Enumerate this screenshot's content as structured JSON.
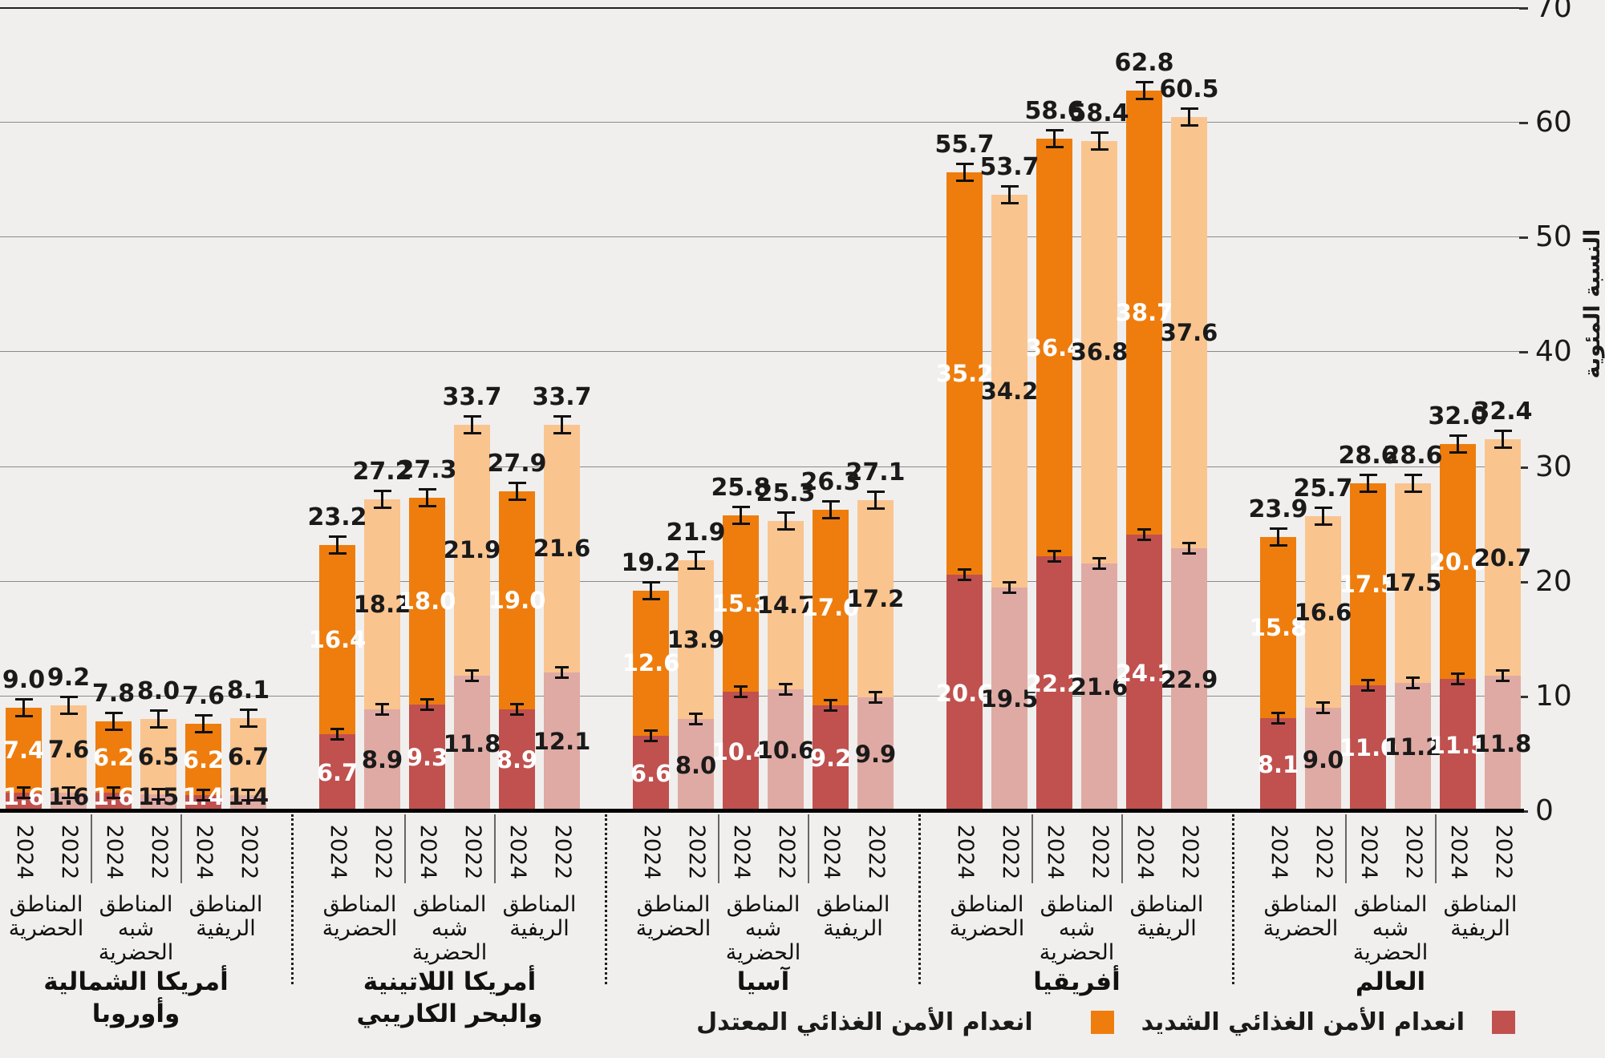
{
  "legend": {
    "severe_label": "انعدام الأمن الغذائي الشديد",
    "moderate_label": "انعدام الأمن الغذائي المعتدل"
  },
  "colors": {
    "severe_2024": "#c0514e",
    "severe_2022": "#dfaaa3",
    "moderate_2024": "#ee7d0e",
    "moderate_2022": "#fac48f",
    "background": "#f0efed",
    "gridline": "#8b8b8b",
    "baseline": "#000000",
    "text": "#1a1a1a"
  },
  "chart_data": {
    "type": "bar",
    "stacked": true,
    "title": "",
    "ylabel": "النسبة المئوية",
    "ylim": [
      0,
      70
    ],
    "yticks": [
      0,
      10,
      20,
      30,
      40,
      50,
      60,
      70
    ],
    "grid": true,
    "legend_position": "bottom-right",
    "series_names": [
      "انعدام الأمن الغذائي الشديد",
      "انعدام الأمن الغذائي المعتدل"
    ],
    "years": [
      "2024",
      "2022"
    ],
    "groups": [
      {
        "label": "أمريكا الشمالية\nوأوروبا",
        "subgroups": [
          {
            "label": "المناطق\nالحضرية",
            "bars": [
              {
                "year": "2024",
                "severe": 1.6,
                "moderate": 7.4,
                "total": 9.0
              },
              {
                "year": "2022",
                "severe": 1.6,
                "moderate": 7.6,
                "total": 9.2
              }
            ]
          },
          {
            "label": "المناطق\nشبه\nالحضرية",
            "bars": [
              {
                "year": "2024",
                "severe": 1.6,
                "moderate": 6.2,
                "total": 7.8
              },
              {
                "year": "2022",
                "severe": 1.5,
                "moderate": 6.5,
                "total": 8.0
              }
            ]
          },
          {
            "label": "المناطق\nالريفية",
            "bars": [
              {
                "year": "2024",
                "severe": 1.4,
                "moderate": 6.2,
                "total": 7.6
              },
              {
                "year": "2022",
                "severe": 1.4,
                "moderate": 6.7,
                "total": 8.1
              }
            ]
          }
        ]
      },
      {
        "label": "أمريكا اللاتينية\nوالبحر الكاريبي",
        "subgroups": [
          {
            "label": "المناطق\nالحضرية",
            "bars": [
              {
                "year": "2024",
                "severe": 6.7,
                "moderate": 16.4,
                "total": 23.2
              },
              {
                "year": "2022",
                "severe": 8.9,
                "moderate": 18.2,
                "total": 27.2
              }
            ]
          },
          {
            "label": "المناطق\nشبه\nالحضرية",
            "bars": [
              {
                "year": "2024",
                "severe": 9.3,
                "moderate": 18.0,
                "total": 27.3
              },
              {
                "year": "2022",
                "severe": 11.8,
                "moderate": 21.9,
                "total": 33.7
              }
            ]
          },
          {
            "label": "المناطق\nالريفية",
            "bars": [
              {
                "year": "2024",
                "severe": 8.9,
                "moderate": 19.0,
                "total": 27.9
              },
              {
                "year": "2022",
                "severe": 12.1,
                "moderate": 21.6,
                "total": 33.7
              }
            ]
          }
        ]
      },
      {
        "label": "آسيا",
        "subgroups": [
          {
            "label": "المناطق\nالحضرية",
            "bars": [
              {
                "year": "2024",
                "severe": 6.6,
                "moderate": 12.6,
                "total": 19.2
              },
              {
                "year": "2022",
                "severe": 8.0,
                "moderate": 13.9,
                "total": 21.9
              }
            ]
          },
          {
            "label": "المناطق\nشبه\nالحضرية",
            "bars": [
              {
                "year": "2024",
                "severe": 10.4,
                "moderate": 15.3,
                "total": 25.8
              },
              {
                "year": "2022",
                "severe": 10.6,
                "moderate": 14.7,
                "total": 25.3
              }
            ]
          },
          {
            "label": "المناطق\nالريفية",
            "bars": [
              {
                "year": "2024",
                "severe": 9.2,
                "moderate": 17.0,
                "total": 26.3
              },
              {
                "year": "2022",
                "severe": 9.9,
                "moderate": 17.2,
                "total": 27.1
              }
            ]
          }
        ]
      },
      {
        "label": "أفريقيا",
        "subgroups": [
          {
            "label": "المناطق\nالحضرية",
            "bars": [
              {
                "year": "2024",
                "severe": 20.6,
                "moderate": 35.2,
                "total": 55.7
              },
              {
                "year": "2022",
                "severe": 19.5,
                "moderate": 34.2,
                "total": 53.7
              }
            ]
          },
          {
            "label": "المناطق\nشبه\nالحضرية",
            "bars": [
              {
                "year": "2024",
                "severe": 22.2,
                "moderate": 36.4,
                "total": 58.6
              },
              {
                "year": "2022",
                "severe": 21.6,
                "moderate": 36.8,
                "total": 58.4
              }
            ]
          },
          {
            "label": "المناطق\nالريفية",
            "bars": [
              {
                "year": "2024",
                "severe": 24.1,
                "moderate": 38.7,
                "total": 62.8
              },
              {
                "year": "2022",
                "severe": 22.9,
                "moderate": 37.6,
                "total": 60.5
              }
            ]
          }
        ]
      },
      {
        "label": "العالم",
        "subgroups": [
          {
            "label": "المناطق\nالحضرية",
            "bars": [
              {
                "year": "2024",
                "severe": 8.1,
                "moderate": 15.8,
                "total": 23.9
              },
              {
                "year": "2022",
                "severe": 9.0,
                "moderate": 16.6,
                "total": 25.7
              }
            ]
          },
          {
            "label": "المناطق\nشبه\nالحضرية",
            "bars": [
              {
                "year": "2024",
                "severe": 11.0,
                "moderate": 17.5,
                "total": 28.6
              },
              {
                "year": "2022",
                "severe": 11.2,
                "moderate": 17.5,
                "total": 28.6
              }
            ]
          },
          {
            "label": "المناطق\nالريفية",
            "bars": [
              {
                "year": "2024",
                "severe": 11.5,
                "moderate": 20.6,
                "total": 32.0
              },
              {
                "year": "2022",
                "severe": 11.8,
                "moderate": 20.7,
                "total": 32.4
              }
            ]
          }
        ]
      }
    ]
  }
}
